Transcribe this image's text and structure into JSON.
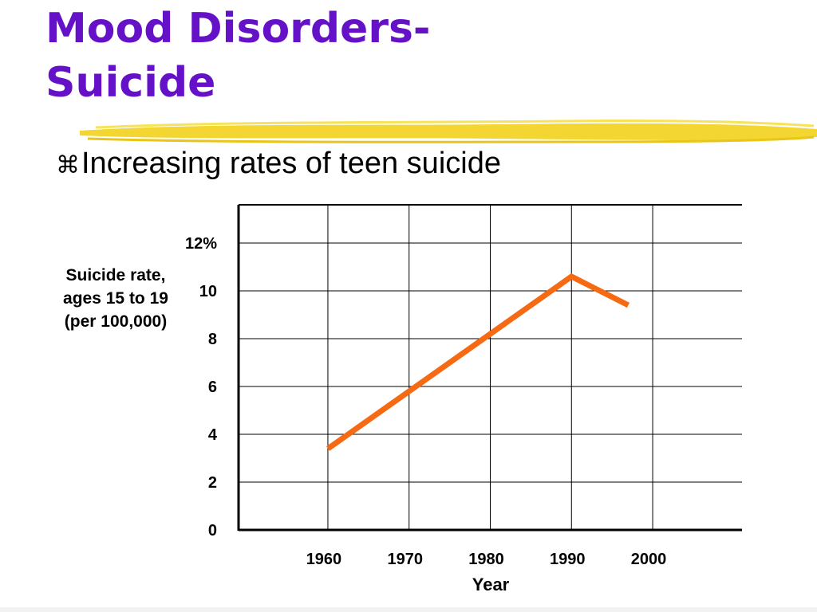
{
  "slide": {
    "title_line1": "Mood Disorders-",
    "title_line2": "Suicide",
    "bullet_text": "Increasing rates of teen suicide",
    "bullet_icon": "z-bullet-icon",
    "title_color": "#6411c8",
    "highlight_color": "#f3d428"
  },
  "chart_data": {
    "type": "line",
    "xlabel": "Year",
    "ylabel": [
      "Suicide rate,",
      "ages 15 to 19",
      "(per 100,000)"
    ],
    "x_ticks": [
      "1960",
      "1970",
      "1980",
      "1990",
      "2000"
    ],
    "y_ticks": [
      "0",
      "2",
      "4",
      "6",
      "8",
      "10",
      "12%"
    ],
    "xlim": [
      1949,
      2011
    ],
    "ylim": [
      0,
      13.6
    ],
    "grid": true,
    "series": [
      {
        "color": "#f56a12",
        "points": [
          {
            "x": 1960,
            "y": 3.4
          },
          {
            "x": 1990,
            "y": 10.6
          },
          {
            "x": 1997,
            "y": 9.4
          }
        ]
      }
    ]
  }
}
